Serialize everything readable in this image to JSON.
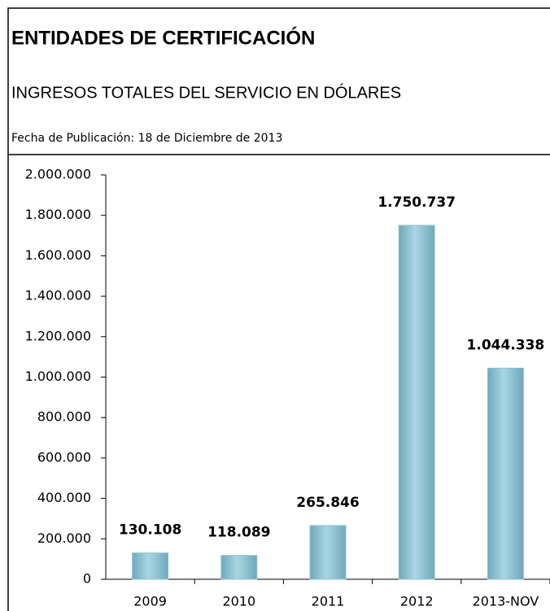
{
  "chart_data": {
    "type": "bar",
    "title": "ENTIDADES DE CERTIFICACIÓN",
    "subtitle": "INGRESOS TOTALES DEL SERVICIO EN DÓLARES",
    "note": "Fecha de Publicación: 18 de Diciembre de 2013",
    "categories": [
      "2009",
      "2010",
      "2011",
      "2012",
      "2013-NOV"
    ],
    "values": [
      130108,
      118089,
      265846,
      1750737,
      1044338
    ],
    "value_labels": [
      "130.108",
      "118.089",
      "265.846",
      "1.750.737",
      "1.044.338"
    ],
    "color": "#8ec3d4",
    "ylim": [
      0,
      2000000
    ],
    "yticks": [
      0,
      {
        "value": 200000,
        "label": "200.000"
      },
      {
        "value": 400000,
        "label": "400.000"
      },
      {
        "value": 600000,
        "label": "600.000"
      },
      {
        "value": 800000,
        "label": "800.000"
      },
      {
        "value": 1000000,
        "label": "1.000.000"
      },
      {
        "value": 1200000,
        "label": "1.200.000"
      },
      {
        "value": 1400000,
        "label": "1.400.000"
      },
      {
        "value": 1600000,
        "label": "1.600.000"
      },
      {
        "value": 1800000,
        "label": "1.800.000"
      },
      {
        "value": 2000000,
        "label": "2.000.000"
      }
    ],
    "grid": false
  }
}
